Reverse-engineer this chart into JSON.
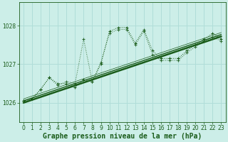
{
  "title": "Graphe pression niveau de la mer (hPa)",
  "bg_color": "#cceee8",
  "grid_color": "#b0ddd8",
  "line_color": "#1a5c1a",
  "xlim": [
    -0.5,
    23.5
  ],
  "ylim": [
    1025.5,
    1028.6
  ],
  "yticks": [
    1026,
    1027,
    1028
  ],
  "xticks": [
    0,
    1,
    2,
    3,
    4,
    5,
    6,
    7,
    8,
    9,
    10,
    11,
    12,
    13,
    14,
    15,
    16,
    17,
    18,
    19,
    20,
    21,
    22,
    23
  ],
  "hours": [
    0,
    1,
    2,
    3,
    4,
    5,
    6,
    7,
    8,
    9,
    10,
    11,
    12,
    13,
    14,
    15,
    16,
    17,
    18,
    19,
    20,
    21,
    22,
    23
  ],
  "series1": [
    1026.05,
    1026.1,
    1026.35,
    1026.65,
    1026.5,
    1026.5,
    1026.4,
    1026.6,
    1026.55,
    1027.0,
    1027.85,
    1027.95,
    1027.95,
    1027.55,
    1027.9,
    1027.35,
    1027.15,
    1027.15,
    1027.15,
    1027.35,
    1027.5,
    1027.65,
    1027.8,
    1027.65
  ],
  "series2": [
    1026.05,
    1026.1,
    1026.35,
    1026.65,
    1026.45,
    1026.55,
    1026.5,
    1027.65,
    1026.55,
    1027.05,
    1027.8,
    1027.9,
    1027.9,
    1027.5,
    1027.85,
    1027.25,
    1027.1,
    1027.1,
    1027.1,
    1027.3,
    1027.45,
    1027.6,
    1027.7,
    1027.6
  ],
  "trend1_x": [
    0,
    23
  ],
  "trend1_y": [
    1026.0,
    1027.72
  ],
  "trend2_x": [
    0,
    23
  ],
  "trend2_y": [
    1026.05,
    1027.77
  ],
  "trend3_x": [
    0,
    23
  ],
  "trend3_y": [
    1026.1,
    1027.82
  ],
  "font_color": "#1a5c1a",
  "title_fontsize": 7.0,
  "tick_fontsize": 5.5
}
